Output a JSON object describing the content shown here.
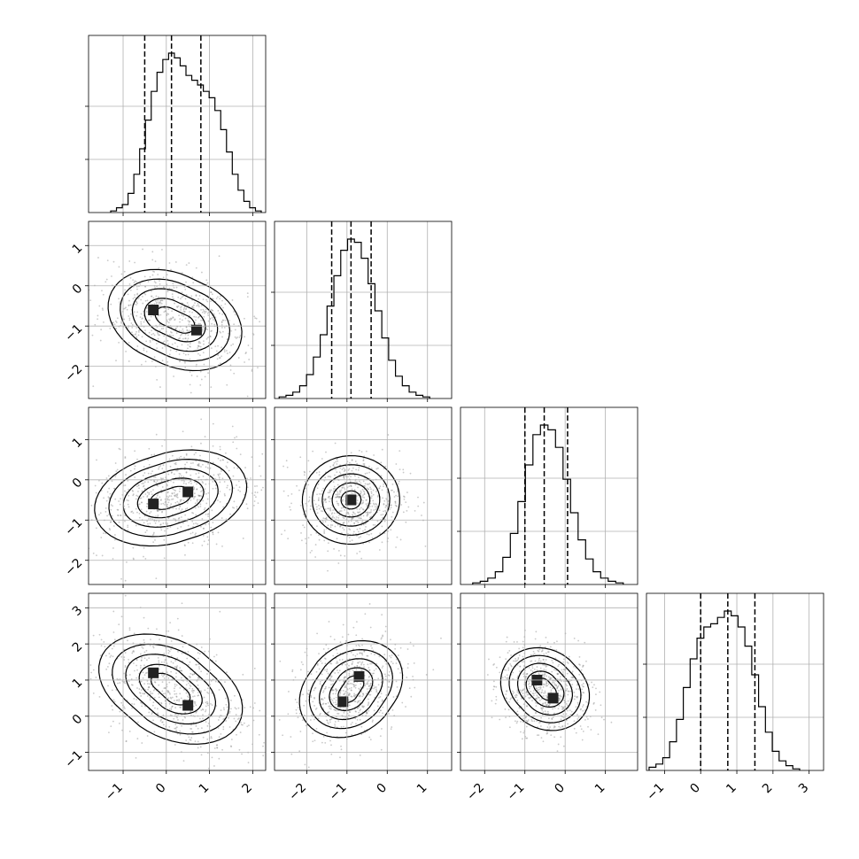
{
  "chart_data": {
    "type": "corner",
    "parameters": 4,
    "ranges": [
      [
        -1.8,
        2.3
      ],
      [
        -2.8,
        1.6
      ],
      [
        -2.6,
        1.8
      ],
      [
        -1.5,
        3.4
      ]
    ],
    "ticks": [
      {
        "values": [
          -1,
          0,
          1,
          2
        ],
        "labels": [
          "−1",
          "0",
          "1",
          "2"
        ]
      },
      {
        "values": [
          -2,
          -1,
          0,
          1
        ],
        "labels": [
          "−2",
          "−1",
          "0",
          "1"
        ]
      },
      {
        "values": [
          -2,
          -1,
          0,
          1
        ],
        "labels": [
          "−2",
          "−1",
          "0",
          "1"
        ]
      },
      {
        "values": [
          -1,
          0,
          1,
          2,
          3
        ],
        "labels": [
          "−1",
          "0",
          "1",
          "2",
          "3"
        ]
      }
    ],
    "histogram_peak": [
      1.0,
      1.0,
      1.0,
      1.0
    ],
    "quantiles": [
      [
        -0.5,
        0.12,
        0.8
      ],
      [
        -1.38,
        -0.9,
        -0.4
      ],
      [
        -1.0,
        -0.52,
        0.06
      ],
      [
        0.0,
        0.75,
        1.5
      ]
    ],
    "histograms": [
      [
        0.01,
        0.03,
        0.05,
        0.12,
        0.24,
        0.4,
        0.58,
        0.76,
        0.88,
        0.96,
        1.0,
        0.97,
        0.92,
        0.86,
        0.83,
        0.8,
        0.76,
        0.72,
        0.64,
        0.52,
        0.38,
        0.24,
        0.14,
        0.07,
        0.03,
        0.01
      ],
      [
        0.01,
        0.02,
        0.04,
        0.08,
        0.15,
        0.26,
        0.4,
        0.58,
        0.77,
        0.93,
        1.0,
        0.98,
        0.88,
        0.72,
        0.55,
        0.38,
        0.24,
        0.14,
        0.08,
        0.04,
        0.02,
        0.01
      ],
      [
        0.01,
        0.02,
        0.04,
        0.08,
        0.17,
        0.32,
        0.52,
        0.75,
        0.94,
        1.0,
        0.97,
        0.86,
        0.66,
        0.45,
        0.28,
        0.16,
        0.08,
        0.04,
        0.02,
        0.01
      ],
      [
        0.02,
        0.04,
        0.08,
        0.18,
        0.32,
        0.52,
        0.7,
        0.83,
        0.9,
        0.92,
        0.96,
        1.0,
        0.97,
        0.9,
        0.78,
        0.6,
        0.4,
        0.24,
        0.12,
        0.06,
        0.03,
        0.01
      ]
    ],
    "pairs": [
      {
        "row": 1,
        "col": 0,
        "centers": [
          [
            -0.3,
            -0.6
          ],
          [
            0.7,
            -1.1
          ]
        ],
        "spread": [
          0.65,
          0.5
        ],
        "angle": -0.45
      },
      {
        "row": 2,
        "col": 0,
        "centers": [
          [
            -0.3,
            -0.6
          ],
          [
            0.5,
            -0.3
          ]
        ],
        "spread": [
          0.75,
          0.5
        ],
        "angle": 0.25
      },
      {
        "row": 2,
        "col": 1,
        "centers": [
          [
            -0.9,
            -0.5
          ]
        ],
        "spread": [
          0.55,
          0.5
        ],
        "angle": 0.05
      },
      {
        "row": 3,
        "col": 0,
        "centers": [
          [
            -0.3,
            1.2
          ],
          [
            0.5,
            0.3
          ]
        ],
        "spread": [
          0.75,
          0.55
        ],
        "angle": -0.6
      },
      {
        "row": 3,
        "col": 1,
        "centers": [
          [
            -1.1,
            0.4
          ],
          [
            -0.7,
            1.1
          ]
        ],
        "spread": [
          0.6,
          0.5
        ],
        "angle": 0.8
      },
      {
        "row": 3,
        "col": 2,
        "centers": [
          [
            -0.7,
            1.0
          ],
          [
            -0.3,
            0.5
          ]
        ],
        "spread": [
          0.5,
          0.45
        ],
        "angle": -0.9
      }
    ]
  }
}
